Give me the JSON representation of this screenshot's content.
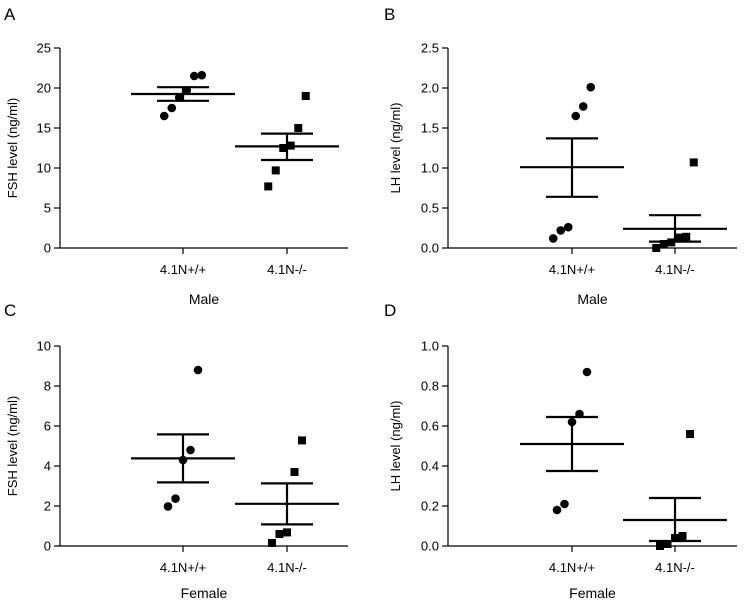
{
  "chart_data": [
    {
      "type": "scatter",
      "panel_label": "A",
      "xlabel": "Male",
      "ylabel": "FSH level (ng/ml)",
      "ylim": [
        0,
        25
      ],
      "ytick_labels": [
        "0",
        "5",
        "10",
        "15",
        "20",
        "25"
      ],
      "yticks": [
        0,
        5,
        10,
        15,
        20,
        25
      ],
      "categories": [
        "4.1N+/+",
        "4.1N-/-"
      ],
      "series": [
        {
          "name": "4.1N+/+",
          "marker": "circle",
          "values": [
            16.5,
            17.5,
            18.8,
            19.7,
            21.5,
            21.6
          ],
          "mean": 19.25,
          "sem_low": 18.4,
          "sem_high": 20.1
        },
        {
          "name": "4.1N-/-",
          "marker": "square",
          "values": [
            7.7,
            9.7,
            12.5,
            12.8,
            15.0,
            19.0
          ],
          "mean": 12.7,
          "sem_low": 11.0,
          "sem_high": 14.3
        }
      ]
    },
    {
      "type": "scatter",
      "panel_label": "B",
      "xlabel": "Male",
      "ylabel": "LH level (ng/ml)",
      "ylim": [
        0,
        2.5
      ],
      "ytick_labels": [
        "0.0",
        "0.5",
        "1.0",
        "1.5",
        "2.0",
        "2.5"
      ],
      "yticks": [
        0,
        0.5,
        1.0,
        1.5,
        2.0,
        2.5
      ],
      "categories": [
        "4.1N+/+",
        "4.1N-/-"
      ],
      "series": [
        {
          "name": "4.1N+/+",
          "marker": "circle",
          "values": [
            0.12,
            0.22,
            0.26,
            1.65,
            1.77,
            2.01
          ],
          "mean": 1.01,
          "sem_low": 0.64,
          "sem_high": 1.37
        },
        {
          "name": "4.1N-/-",
          "marker": "square",
          "values": [
            0.0,
            0.05,
            0.07,
            0.13,
            0.14,
            1.07
          ],
          "mean": 0.24,
          "sem_low": 0.08,
          "sem_high": 0.41
        }
      ]
    },
    {
      "type": "scatter",
      "panel_label": "C",
      "xlabel": "Female",
      "ylabel": "FSH level (ng/ml)",
      "ylim": [
        0,
        10
      ],
      "ytick_labels": [
        "0",
        "2",
        "4",
        "6",
        "8",
        "10"
      ],
      "yticks": [
        0,
        2,
        4,
        6,
        8,
        10
      ],
      "categories": [
        "4.1N+/+",
        "4.1N-/-"
      ],
      "series": [
        {
          "name": "4.1N+/+",
          "marker": "circle",
          "values": [
            1.98,
            2.37,
            4.3,
            4.8,
            8.8
          ],
          "mean": 4.38,
          "sem_low": 3.18,
          "sem_high": 5.58
        },
        {
          "name": "4.1N-/-",
          "marker": "square",
          "values": [
            0.15,
            0.6,
            0.68,
            3.7,
            5.28
          ],
          "mean": 2.11,
          "sem_low": 1.08,
          "sem_high": 3.13
        }
      ]
    },
    {
      "type": "scatter",
      "panel_label": "D",
      "xlabel": "Female",
      "ylabel": "LH level (ng/ml)",
      "ylim": [
        0,
        1.0
      ],
      "ytick_labels": [
        "0.0",
        "0.2",
        "0.4",
        "0.6",
        "0.8",
        "1.0"
      ],
      "yticks": [
        0,
        0.2,
        0.4,
        0.6,
        0.8,
        1.0
      ],
      "categories": [
        "4.1N+/+",
        "4.1N-/-"
      ],
      "series": [
        {
          "name": "4.1N+/+",
          "marker": "circle",
          "values": [
            0.18,
            0.21,
            0.62,
            0.66,
            0.87
          ],
          "mean": 0.51,
          "sem_low": 0.375,
          "sem_high": 0.645
        },
        {
          "name": "4.1N-/-",
          "marker": "square",
          "values": [
            0.0,
            0.01,
            0.04,
            0.05,
            0.56
          ],
          "mean": 0.13,
          "sem_low": 0.025,
          "sem_high": 0.24
        }
      ]
    }
  ]
}
